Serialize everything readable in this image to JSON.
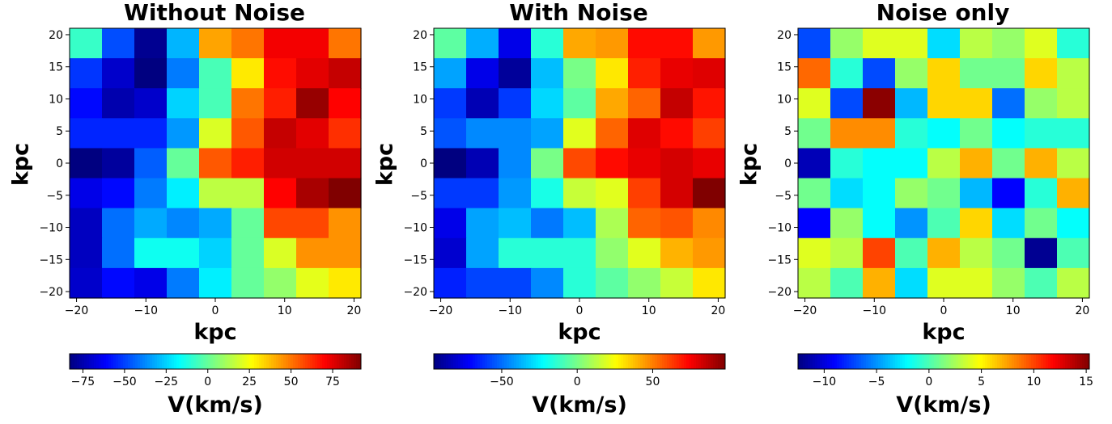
{
  "chart_data": [
    {
      "type": "heatmap",
      "title": "Without Noise",
      "xlabel": "kpc",
      "ylabel": "kpc",
      "xlim": [
        -21,
        21
      ],
      "ylim": [
        -21,
        21
      ],
      "xticks": [
        -20,
        -10,
        0,
        10,
        20
      ],
      "yticks": [
        -20,
        -15,
        -10,
        -5,
        0,
        5,
        10,
        15,
        20
      ],
      "colorbar_label": "V(km/s)",
      "colorbar_range": [
        -83,
        92
      ],
      "colorbar_ticks": [
        -75,
        -50,
        -25,
        0,
        25,
        50,
        75
      ],
      "values": [
        [
          -8,
          -48,
          -80,
          -30,
          42,
          50,
          72,
          72,
          50
        ],
        [
          -52,
          -70,
          -85,
          -40,
          -5,
          30,
          68,
          75,
          80
        ],
        [
          -60,
          -75,
          -70,
          -25,
          -5,
          50,
          65,
          88,
          70
        ],
        [
          -55,
          -55,
          -55,
          -35,
          20,
          55,
          80,
          75,
          62
        ],
        [
          -83,
          -78,
          -45,
          0,
          55,
          65,
          78,
          78,
          78
        ],
        [
          -65,
          -60,
          -40,
          -20,
          15,
          15,
          70,
          85,
          92
        ],
        [
          -72,
          -42,
          -32,
          -38,
          -32,
          0,
          58,
          58,
          45
        ],
        [
          -72,
          -42,
          -15,
          -15,
          -25,
          0,
          20,
          45,
          45
        ],
        [
          -70,
          -60,
          -65,
          -40,
          -20,
          0,
          8,
          22,
          30
        ]
      ]
    },
    {
      "type": "heatmap",
      "title": "With Noise",
      "xlabel": "kpc",
      "ylabel": "kpc",
      "xlim": [
        -21,
        21
      ],
      "ylim": [
        -21,
        21
      ],
      "xticks": [
        -20,
        -10,
        0,
        10,
        20
      ],
      "yticks": [
        -20,
        -15,
        -10,
        -5,
        0,
        5,
        10,
        15,
        20
      ],
      "colorbar_label": "V(km/s)",
      "colorbar_range": [
        -95,
        98
      ],
      "colorbar_ticks": [
        -50,
        0,
        50
      ],
      "values": [
        [
          -5,
          -38,
          -75,
          -15,
          42,
          45,
          72,
          72,
          45
        ],
        [
          -40,
          -75,
          -90,
          -35,
          0,
          30,
          68,
          78,
          80
        ],
        [
          -60,
          -85,
          -60,
          -30,
          -5,
          42,
          55,
          85,
          70
        ],
        [
          -55,
          -45,
          -45,
          -40,
          20,
          55,
          80,
          72,
          62
        ],
        [
          -95,
          -85,
          -45,
          0,
          60,
          72,
          78,
          82,
          78
        ],
        [
          -60,
          -60,
          -42,
          -18,
          15,
          20,
          62,
          82,
          98
        ],
        [
          -75,
          -40,
          -35,
          -48,
          -35,
          10,
          55,
          58,
          48
        ],
        [
          -80,
          -40,
          -15,
          -15,
          -15,
          5,
          20,
          40,
          45
        ],
        [
          -65,
          -58,
          -58,
          -45,
          -15,
          -5,
          5,
          15,
          30
        ]
      ]
    },
    {
      "type": "heatmap",
      "title": "Noise only",
      "xlabel": "kpc",
      "ylabel": "kpc",
      "xlim": [
        -21,
        21
      ],
      "ylim": [
        -21,
        21
      ],
      "xticks": [
        -20,
        -10,
        0,
        10,
        20
      ],
      "yticks": [
        -20,
        -15,
        -10,
        -5,
        0,
        5,
        10,
        15,
        20
      ],
      "colorbar_label": "V(km/s)",
      "colorbar_range": [
        -12.5,
        15.3
      ],
      "colorbar_ticks": [
        -10,
        -5,
        0,
        5,
        10,
        15
      ],
      "values": [
        [
          -7,
          2,
          4,
          4,
          -3,
          3,
          2,
          4,
          -1
        ],
        [
          9,
          -1,
          -7,
          2,
          6,
          1,
          1,
          6,
          3
        ],
        [
          4,
          -7,
          15,
          -4,
          6,
          6,
          -6,
          2,
          3
        ],
        [
          1,
          8,
          8,
          -1,
          -2,
          1,
          -2,
          -1,
          -1
        ],
        [
          -11,
          -1,
          -2,
          -2,
          3,
          7,
          1,
          7,
          3
        ],
        [
          1,
          -3,
          -2,
          2,
          1,
          -4,
          -9,
          -1,
          7
        ],
        [
          -9,
          2,
          -2,
          -5,
          0,
          6,
          -3,
          1,
          -2
        ],
        [
          4,
          3,
          10,
          0,
          7,
          3,
          1,
          -12,
          0
        ],
        [
          3,
          0,
          7,
          -3,
          4,
          4,
          2,
          0,
          3
        ]
      ]
    }
  ]
}
